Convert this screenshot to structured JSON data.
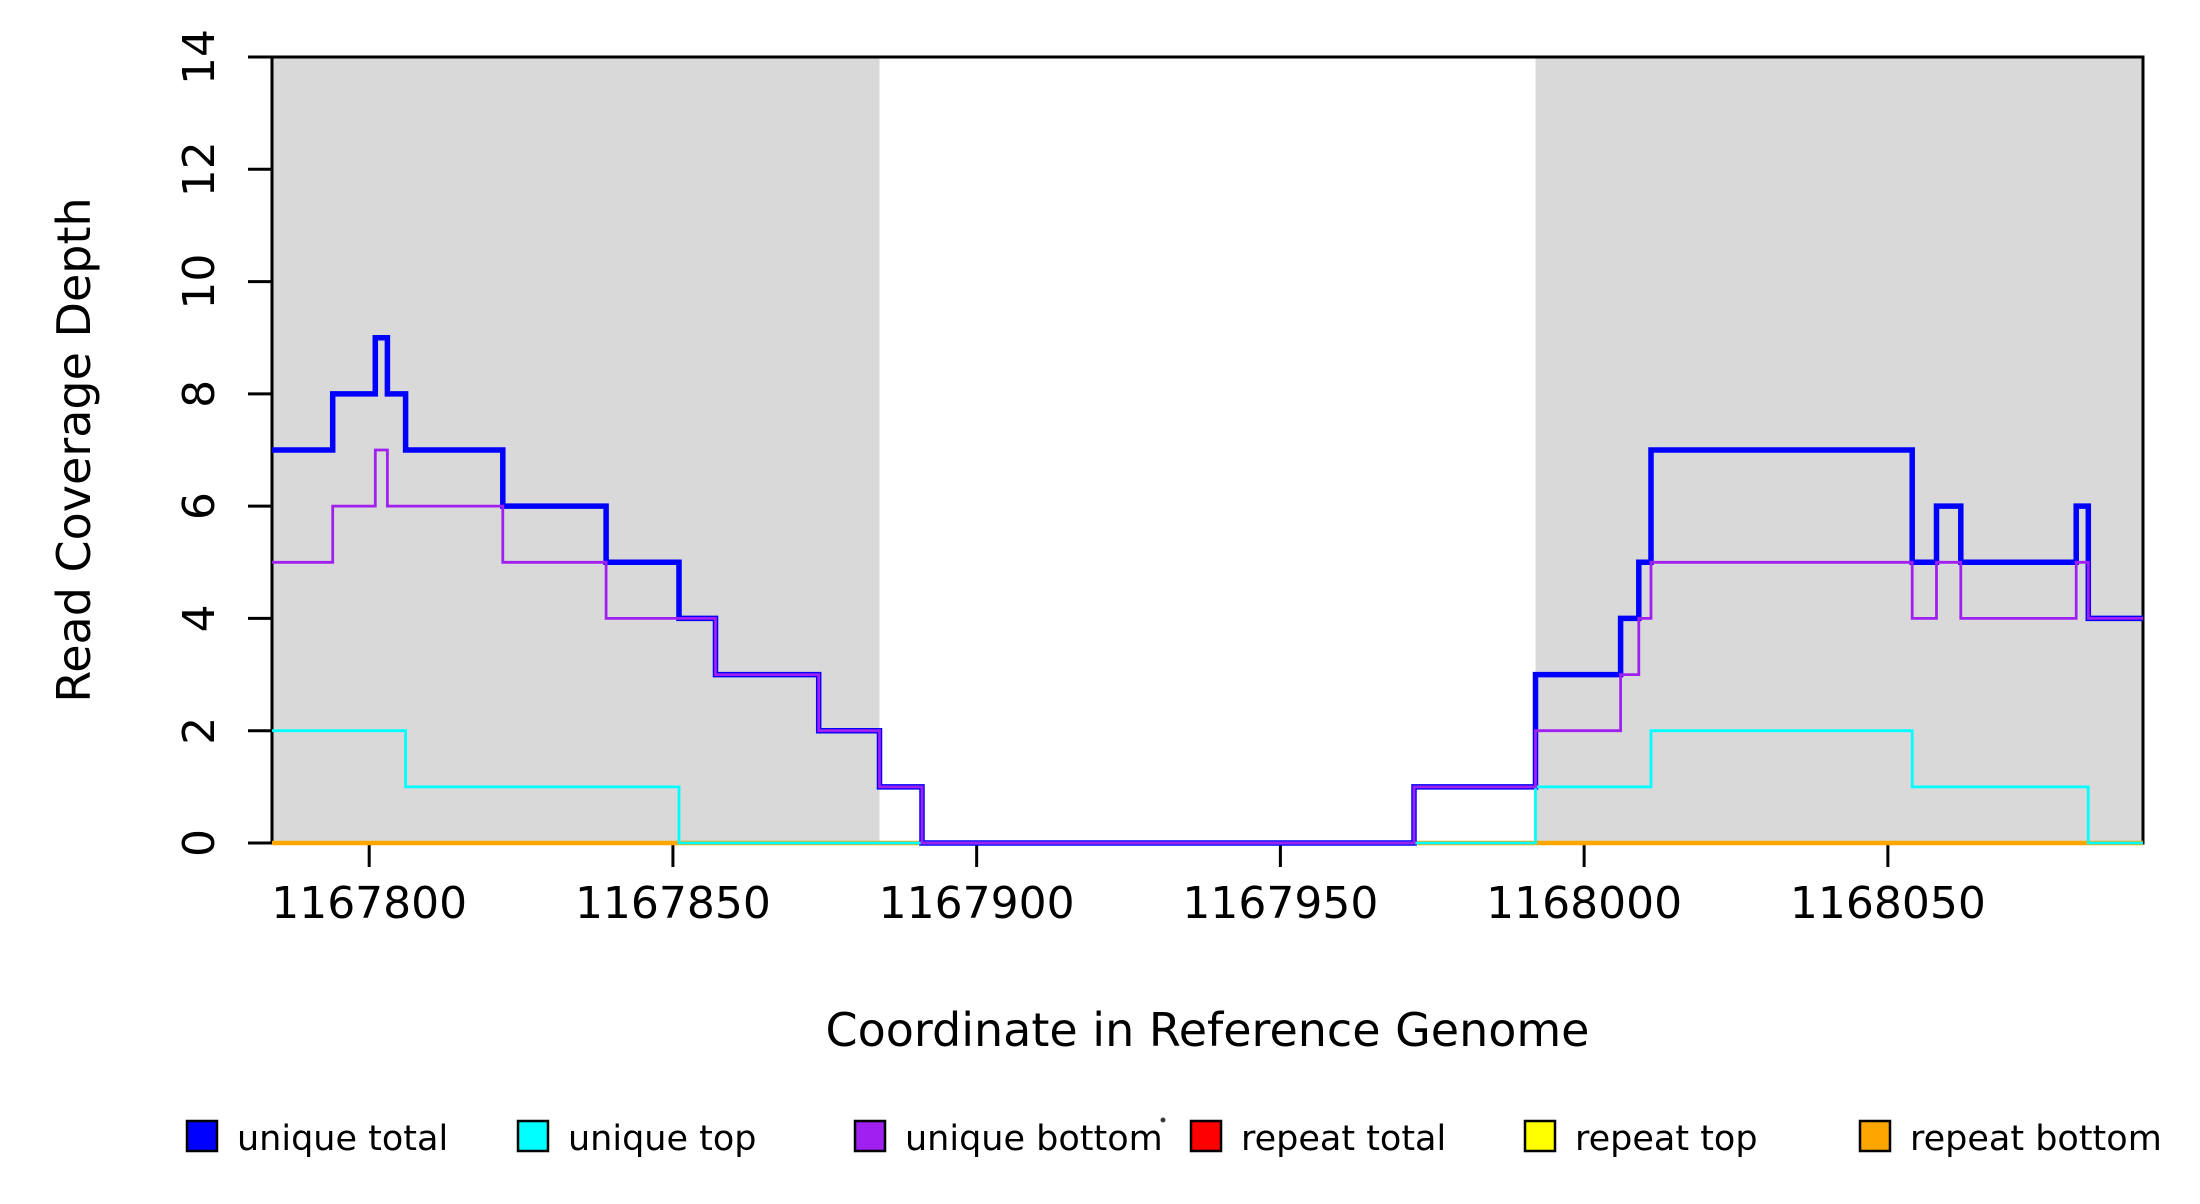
{
  "chart_data": {
    "type": "line",
    "subtype": "step",
    "title": "",
    "xlabel": "Coordinate in Reference Genome",
    "ylabel": "Read Coverage Depth",
    "xlim": [
      1167784,
      1168092
    ],
    "ylim": [
      0,
      14
    ],
    "grid": false,
    "background": "#FFFFFF",
    "frame_color": "#000000",
    "x_ticks": {
      "values": [
        1167800,
        1167850,
        1167900,
        1167950,
        1168000,
        1168050
      ],
      "labels": [
        "1167800",
        "1167850",
        "1167900",
        "1167950",
        "1168000",
        "1168050"
      ]
    },
    "y_ticks": {
      "values": [
        0,
        2,
        4,
        6,
        8,
        10,
        12,
        14
      ],
      "labels": [
        "0",
        "2",
        "4",
        "6",
        "8",
        "10",
        "12",
        "14"
      ],
      "rotated": true
    },
    "shaded_regions": [
      {
        "name": "repeat-region-shading-left",
        "x0": 1167784,
        "x1": 1167884,
        "color": "#D9D9D9"
      },
      {
        "name": "repeat-region-shading-right",
        "x0": 1167992,
        "x1": 1168092,
        "color": "#D9D9D9"
      }
    ],
    "series": [
      {
        "name": "unique total",
        "color": "#0000FF",
        "line_width": 5.5,
        "points": [
          [
            1167784,
            7
          ],
          [
            1167794,
            8
          ],
          [
            1167801,
            9
          ],
          [
            1167803,
            8
          ],
          [
            1167806,
            7
          ],
          [
            1167822,
            6
          ],
          [
            1167839,
            5
          ],
          [
            1167851,
            4
          ],
          [
            1167857,
            3
          ],
          [
            1167874,
            2
          ],
          [
            1167884,
            1
          ],
          [
            1167891,
            0
          ],
          [
            1167972,
            1
          ],
          [
            1167992,
            3
          ],
          [
            1168006,
            4
          ],
          [
            1168009,
            5
          ],
          [
            1168011,
            7
          ],
          [
            1168054,
            5
          ],
          [
            1168058,
            6
          ],
          [
            1168062,
            5
          ],
          [
            1168081,
            6
          ],
          [
            1168083,
            4
          ],
          [
            1168092,
            4
          ]
        ]
      },
      {
        "name": "unique top",
        "color": "#00FFFF",
        "line_width": 2.8,
        "points": [
          [
            1167784,
            2
          ],
          [
            1167806,
            1
          ],
          [
            1167851,
            0
          ],
          [
            1167992,
            1
          ],
          [
            1168011,
            2
          ],
          [
            1168054,
            1
          ],
          [
            1168083,
            0
          ],
          [
            1168092,
            0
          ]
        ]
      },
      {
        "name": "unique bottom",
        "color": "#A020F0",
        "line_width": 2.8,
        "points": [
          [
            1167784,
            5
          ],
          [
            1167794,
            6
          ],
          [
            1167801,
            7
          ],
          [
            1167803,
            6
          ],
          [
            1167822,
            5
          ],
          [
            1167839,
            4
          ],
          [
            1167857,
            3
          ],
          [
            1167874,
            2
          ],
          [
            1167884,
            1
          ],
          [
            1167891,
            0
          ],
          [
            1167972,
            1
          ],
          [
            1167992,
            2
          ],
          [
            1168006,
            3
          ],
          [
            1168009,
            4
          ],
          [
            1168011,
            5
          ],
          [
            1168054,
            4
          ],
          [
            1168058,
            5
          ],
          [
            1168062,
            4
          ],
          [
            1168081,
            5
          ],
          [
            1168083,
            4
          ],
          [
            1168092,
            4
          ]
        ]
      },
      {
        "name": "repeat total",
        "color": "#FF0000",
        "line_width": 2.8,
        "points": [
          [
            1167784,
            0
          ],
          [
            1168092,
            0
          ]
        ]
      },
      {
        "name": "repeat top",
        "color": "#FFFF00",
        "line_width": 2.8,
        "points": [
          [
            1167784,
            0
          ],
          [
            1168092,
            0
          ]
        ]
      },
      {
        "name": "repeat bottom",
        "color": "#FFA500",
        "line_width": 4.5,
        "points": [
          [
            1167784,
            0
          ],
          [
            1168092,
            0
          ]
        ]
      }
    ],
    "draw_order": [
      "repeat total",
      "repeat top",
      "repeat bottom",
      "unique total",
      "unique top",
      "unique bottom"
    ],
    "legend": {
      "position": "bottom",
      "entries": [
        {
          "label": "unique total",
          "color": "#0000FF"
        },
        {
          "label": "unique top",
          "color": "#00FFFF"
        },
        {
          "label": "unique bottom",
          "color": "#A020F0"
        },
        {
          "label": "repeat total",
          "color": "#FF0000"
        },
        {
          "label": "repeat top",
          "color": "#FFFF00"
        },
        {
          "label": "repeat bottom",
          "color": "#FFA500"
        }
      ]
    },
    "annotations": [
      {
        "type": "dot",
        "x": 1163,
        "y": 1120,
        "color": "#3A3A3A"
      }
    ]
  }
}
